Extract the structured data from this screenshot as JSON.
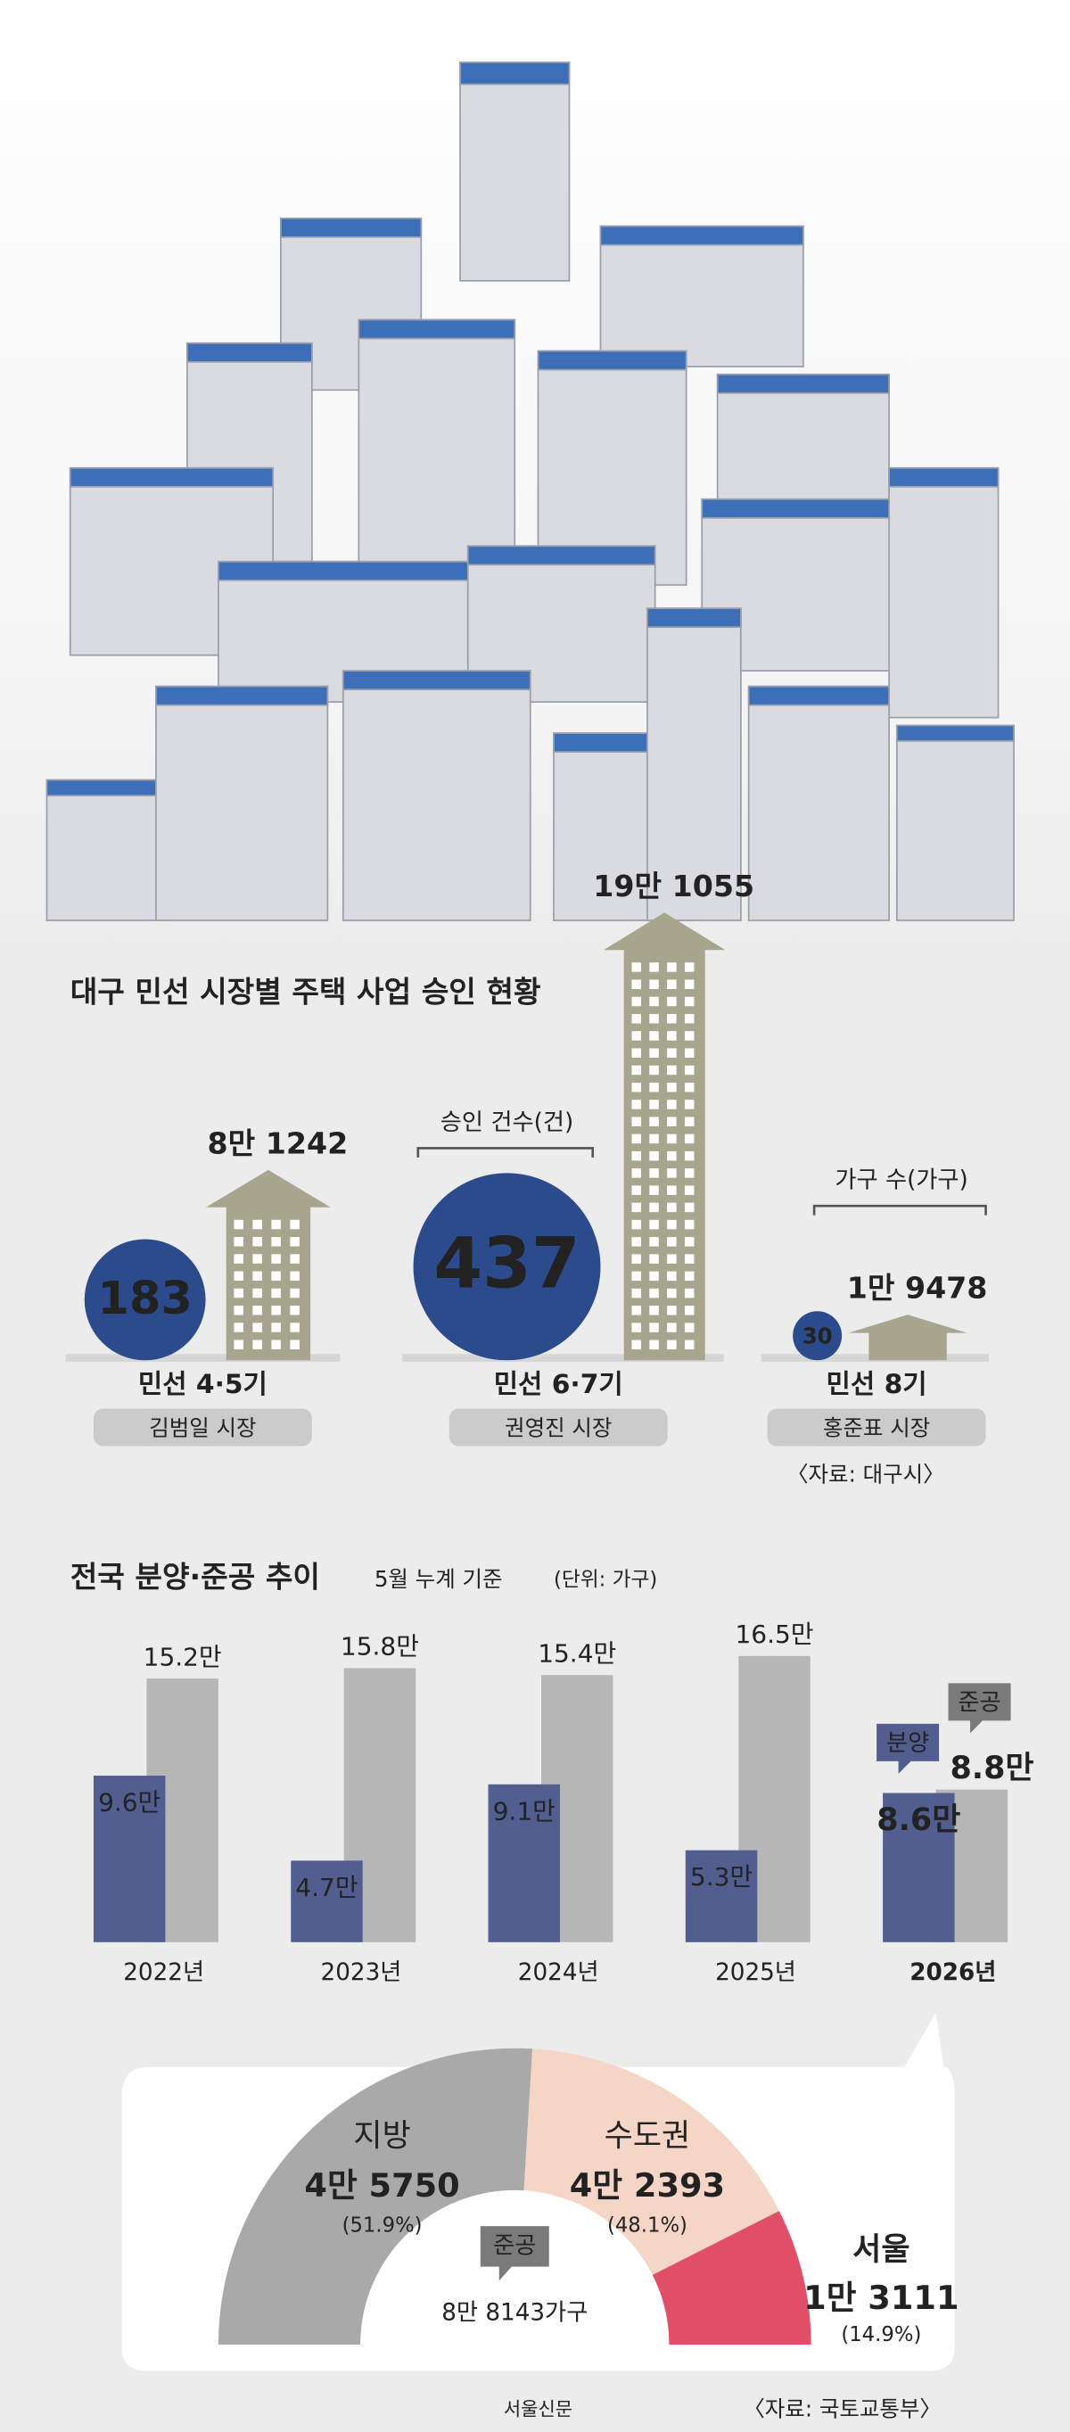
{
  "chart_data": [
    {
      "type": "pictograph",
      "title": "대구 민선 시장별 주택 사업 승인 현황",
      "categories": [
        "민선 4·5기",
        "민선 6·7기",
        "민선 8기"
      ],
      "mayors": [
        "김범일 시장",
        "권영진 시장",
        "홍준표 시장"
      ],
      "series": [
        {
          "name": "승인 건수(건)",
          "color": "#2c4b8c",
          "values": [
            183,
            437,
            30
          ]
        },
        {
          "name": "가구 수(가구)",
          "color": "#a8a58e",
          "values": [
            81242,
            191055,
            19478
          ],
          "value_labels": [
            "8만 1242",
            "19만 1055",
            "1만 9478"
          ]
        }
      ],
      "source": "〈자료: 대구시〉"
    },
    {
      "type": "bar",
      "title": "전국 분양·준공 추이",
      "subtitle": "5월 누계 기준",
      "unit": "(단위: 가구)",
      "categories": [
        "2022년",
        "2023년",
        "2024년",
        "2025년",
        "2026년"
      ],
      "series": [
        {
          "name": "분양",
          "color": "#525e90",
          "values": [
            9.6,
            4.7,
            9.1,
            5.3,
            8.6
          ],
          "value_labels": [
            "9.6만",
            "4.7만",
            "9.1만",
            "5.3만",
            "8.6만"
          ]
        },
        {
          "name": "준공",
          "color": "#b6b6b6",
          "values": [
            15.2,
            15.8,
            15.4,
            16.5,
            8.8
          ],
          "value_labels": [
            "15.2만",
            "15.8만",
            "15.4만",
            "16.5만",
            "8.8만"
          ]
        }
      ],
      "ylim": [
        0,
        17
      ]
    },
    {
      "type": "donut",
      "title": "준공",
      "total_label": "8만 8143가구",
      "categories": [
        "지방",
        "수도권"
      ],
      "values": [
        45750,
        42393
      ],
      "value_labels": [
        "4만 5750",
        "4만 2393"
      ],
      "percents": [
        51.9,
        48.1
      ],
      "percent_labels": [
        "(51.9%)",
        "(48.1%)"
      ],
      "colors": [
        "#a9a9a9",
        "#f5d5c6"
      ],
      "highlight": {
        "name": "서울",
        "value": 13111,
        "value_label": "1만 3111",
        "percent": 14.9,
        "percent_label": "(14.9%)",
        "color": "#e04f67"
      },
      "source": "〈자료: 국토교통부〉"
    }
  ],
  "publisher": "서울신문"
}
